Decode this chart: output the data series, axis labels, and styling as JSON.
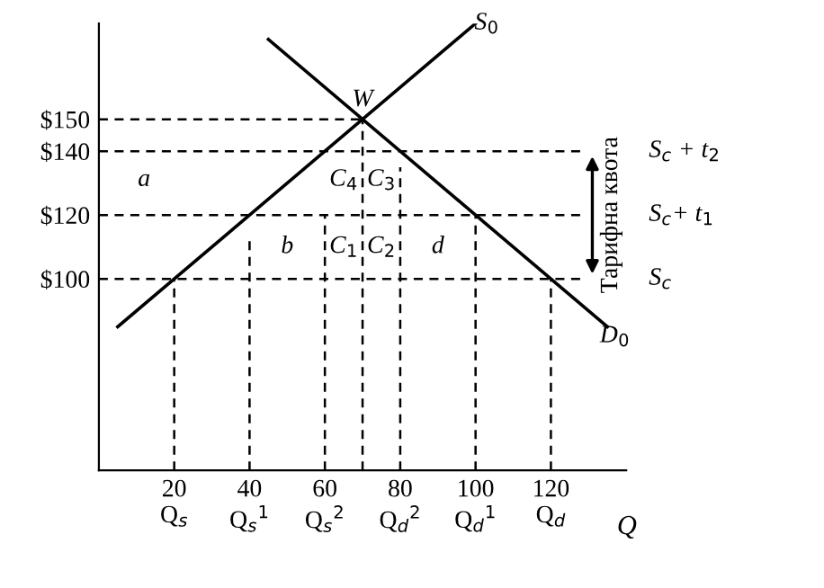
{
  "chart_data": {
    "type": "line",
    "xlabel": "Q",
    "xlim": [
      0,
      140
    ],
    "ylim": [
      40,
      180
    ],
    "xticks": [
      {
        "value": 20,
        "label": "20\nQ$_{s}$"
      },
      {
        "value": 40,
        "label": "40\nQ$_{s}$$^{1}$"
      },
      {
        "value": 60,
        "label": "60\nQ$_{s}$$^{2}$"
      },
      {
        "value": 80,
        "label": "80\nQ$_{d}$$^{2}$"
      },
      {
        "value": 100,
        "label": "100\nQ$_{d}$$^{1}$"
      },
      {
        "value": 120,
        "label": "120\nQ$_{d}$"
      }
    ],
    "yticks": [
      {
        "value": 100,
        "label": "$100"
      },
      {
        "value": 120,
        "label": "$120"
      },
      {
        "value": 140,
        "label": "$140"
      },
      {
        "value": 150,
        "label": "$150"
      }
    ],
    "grid": false,
    "marker": "none",
    "series": [
      {
        "color": "#000000",
        "line_style": "solid",
        "x": [
          5,
          100
        ],
        "values": [
          85,
          180
        ]
      },
      {
        "color": "#000000",
        "line_style": "solid",
        "x": [
          45,
          135
        ],
        "values": [
          175,
          85
        ]
      },
      {
        "color": "#000000",
        "line_style": "dashed",
        "x": [
          0,
          70
        ],
        "values": [
          150,
          150
        ]
      },
      {
        "color": "#000000",
        "line_style": "dashed",
        "x": [
          0,
          128
        ],
        "values": [
          140,
          140
        ]
      },
      {
        "color": "#000000",
        "line_style": "dashed",
        "x": [
          0,
          128
        ],
        "values": [
          120,
          120
        ]
      },
      {
        "color": "#000000",
        "line_style": "dashed",
        "x": [
          0,
          128
        ],
        "values": [
          100,
          100
        ]
      },
      {
        "color": "#000000",
        "line_style": "dashed",
        "x": [
          20,
          20
        ],
        "values": [
          40,
          100
        ]
      },
      {
        "color": "#000000",
        "line_style": "dashed",
        "x": [
          40,
          40
        ],
        "values": [
          40,
          112
        ]
      },
      {
        "color": "#000000",
        "line_style": "dashed",
        "x": [
          60,
          60
        ],
        "values": [
          40,
          120
        ]
      },
      {
        "color": "#000000",
        "line_style": "dashed",
        "x": [
          70,
          70
        ],
        "values": [
          40,
          150
        ]
      },
      {
        "color": "#000000",
        "line_style": "dashed",
        "x": [
          80,
          80
        ],
        "values": [
          40,
          135
        ]
      },
      {
        "color": "#000000",
        "line_style": "dashed",
        "x": [
          100,
          100
        ],
        "values": [
          40,
          120
        ]
      },
      {
        "color": "#000000",
        "line_style": "dashed",
        "x": [
          120,
          120
        ],
        "values": [
          40,
          100
        ]
      }
    ],
    "annotations": [
      "S$_{0}$",
      "D$_{0}$",
      "W",
      "a",
      "b",
      "C$_{4}$",
      "C$_{3}$",
      "C$_{1}$",
      "C$_{2}$",
      "d",
      "Тарифна квота",
      "S$_{c}$ + t$_{2}$",
      "S$_{c}$+ t$_{1}$",
      "S$_{c}$"
    ]
  }
}
